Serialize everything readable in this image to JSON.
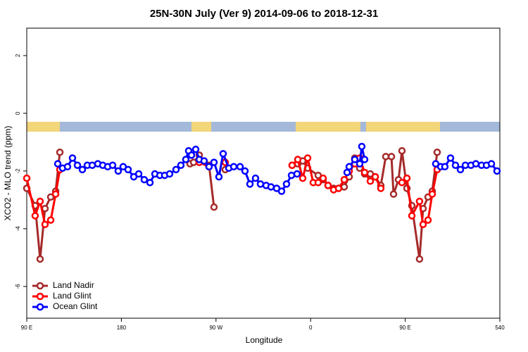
{
  "chart_data": {
    "type": "line",
    "title": "25N-30N July (Ver 9)   2014-09-06 to 2018-12-31",
    "x_label": "Longitude",
    "y_label": "XCO2 - MLO trend (ppm)",
    "xlim": [
      90,
      540
    ],
    "ylim": [
      -7.1,
      2.95
    ],
    "xticks": [
      {
        "value": 90,
        "label": "90 E"
      },
      180,
      {
        "value": 270,
        "label": "90 W"
      },
      {
        "value": 360,
        "label": "0"
      },
      {
        "value": 450,
        "label": "90 E"
      },
      540
    ],
    "yticks": [
      -6,
      -4,
      -2,
      0,
      2
    ],
    "legend": "bottomleft",
    "series": [
      {
        "name": "Land Nadir",
        "color": "#a52a2a",
        "x": [
          90,
          98.0,
          102.7,
          107.4,
          112.8,
          117.5,
          121.5,
          null,
          245.3,
          248.7,
          254.1,
          258.7,
          263.4,
          268.1,
          null,
          278.8,
          null,
          342.4,
          347.8,
          352.5,
          357.2,
          367.2,
          371.9,
          376.6,
          381.9,
          386.6,
          392.0,
          396.7,
          402.0,
          406.7,
          411.4,
          416.8,
          421.5,
          426.8,
          431.5,
          436.9,
          438.9,
          443.6,
          446.9,
          451.6,
          456.3,
          463.6,
          467.0,
          471.7,
          475.7,
          480.4
        ],
        "values": [
          -2.6,
          -3.2,
          -5.05,
          -3.3,
          -2.9,
          -2.7,
          -1.35,
          null,
          -1.75,
          -1.7,
          -1.45,
          -1.65,
          -1.8,
          -3.25,
          null,
          -1.95,
          null,
          -1.8,
          -1.75,
          -1.65,
          -1.9,
          -2.15,
          -2.3,
          -2.5,
          -2.6,
          -2.6,
          -2.55,
          -2.2,
          -1.55,
          -1.9,
          -2.1,
          -2.1,
          -2.2,
          -2.5,
          -1.5,
          -1.5,
          -2.8,
          -2.3,
          -1.3,
          -2.6,
          -3.2,
          -5.05,
          -3.3,
          -2.9,
          -2.7,
          -1.35
        ]
      },
      {
        "name": "Land Glint",
        "color": "#ff0000",
        "x": [
          90,
          98.0,
          102.7,
          107.4,
          112.8,
          117.5,
          121.5,
          null,
          254.1,
          263.4,
          null,
          278.8,
          null,
          342.4,
          347.8,
          352.5,
          357.2,
          362.5,
          367.2,
          371.9,
          376.6,
          381.9,
          386.6,
          392.0,
          396.7,
          402.0,
          406.7,
          411.4,
          416.8,
          421.5,
          426.8,
          null,
          446.9,
          451.6,
          456.3,
          463.6,
          467.0,
          471.7,
          475.7,
          480.4
        ],
        "values": [
          -2.25,
          -3.55,
          -3.05,
          -3.85,
          -3.7,
          -2.8,
          -1.95,
          null,
          -1.7,
          -1.85,
          null,
          -1.7,
          null,
          -1.8,
          -1.6,
          -2.25,
          -1.55,
          -2.4,
          -2.4,
          -2.25,
          -2.5,
          -2.65,
          -2.6,
          -2.3,
          -2.0,
          -1.75,
          -1.55,
          -2.05,
          -2.35,
          -2.2,
          -2.6,
          null,
          -2.4,
          -2.25,
          -3.55,
          -3.05,
          -3.85,
          -3.7,
          -2.8,
          -1.95
        ]
      },
      {
        "name": "Ocean Glint",
        "color": "#0000ff",
        "x": [
          119.5,
          124.1,
          128.8,
          133.5,
          138.2,
          142.9,
          147.6,
          152.3,
          157.6,
          162.3,
          167.0,
          171.7,
          177.0,
          181.7,
          186.4,
          191.8,
          196.5,
          201.8,
          207.2,
          211.9,
          216.6,
          221.2,
          225.9,
          232.0,
          236.6,
          241.3,
          244.0,
          246.7,
          250.7,
          254.1,
          258.7,
          263.4,
          268.1,
          272.8,
          276.8,
          282.2,
          286.9,
          292.9,
          297.6,
          302.3,
          307.6,
          312.3,
          317.7,
          322.3,
          327.7,
          332.4,
          337.1,
          341.8,
          347.1,
          null,
          394.7,
          396.7,
          402.0,
          406.7,
          408.7,
          411.4,
          null,
          479.0,
          483.8,
          487.7,
          493.1,
          497.8,
          502.5,
          507.2,
          512.5,
          517.2,
          522.6,
          527.3,
          532.0,
          537.3
        ],
        "values": [
          -1.75,
          -1.9,
          -1.85,
          -1.55,
          -1.8,
          -1.95,
          -1.8,
          -1.8,
          -1.75,
          -1.8,
          -1.85,
          -1.8,
          -2.0,
          -1.85,
          -1.95,
          -2.2,
          -2.1,
          -2.3,
          -2.4,
          -2.1,
          -2.15,
          -2.15,
          -2.1,
          -1.95,
          -1.8,
          -1.6,
          -1.3,
          -1.45,
          -1.25,
          -1.6,
          -1.65,
          -1.85,
          -1.7,
          -2.2,
          -1.4,
          -1.9,
          -1.85,
          -1.85,
          -2.0,
          -2.45,
          -2.25,
          -2.45,
          -2.5,
          -2.55,
          -2.6,
          -2.7,
          -2.45,
          -2.15,
          -2.1,
          null,
          -2.05,
          -1.85,
          -1.6,
          -1.75,
          -1.15,
          -1.6,
          null,
          -1.75,
          -1.85,
          -1.85,
          -1.55,
          -1.8,
          -1.95,
          -1.8,
          -1.8,
          -1.75,
          -1.8,
          -1.8,
          -1.75,
          -2.0
        ]
      }
    ]
  }
}
